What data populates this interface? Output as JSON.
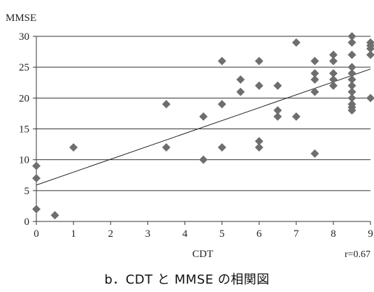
{
  "chart_data": {
    "type": "scatter",
    "title": "",
    "xlabel": "CDT",
    "ylabel": "MMSE",
    "xlim": [
      0,
      9
    ],
    "ylim": [
      0,
      30
    ],
    "x_ticks": [
      0,
      1,
      2,
      3,
      4,
      5,
      6,
      7,
      8,
      9
    ],
    "y_ticks": [
      0,
      5,
      10,
      15,
      20,
      25,
      30
    ],
    "grid": "horizontal",
    "marker": "diamond",
    "marker_color": "#6e6e6e",
    "line_color": "#222222",
    "points": [
      {
        "x": 0,
        "y": 9
      },
      {
        "x": 0,
        "y": 7
      },
      {
        "x": 0,
        "y": 2
      },
      {
        "x": 0.5,
        "y": 1
      },
      {
        "x": 1,
        "y": 12
      },
      {
        "x": 3.5,
        "y": 19
      },
      {
        "x": 3.5,
        "y": 12
      },
      {
        "x": 4.5,
        "y": 17
      },
      {
        "x": 4.5,
        "y": 10
      },
      {
        "x": 5,
        "y": 26
      },
      {
        "x": 5,
        "y": 19
      },
      {
        "x": 5,
        "y": 12
      },
      {
        "x": 5.5,
        "y": 23
      },
      {
        "x": 5.5,
        "y": 21
      },
      {
        "x": 6,
        "y": 26
      },
      {
        "x": 6,
        "y": 22
      },
      {
        "x": 6,
        "y": 13
      },
      {
        "x": 6,
        "y": 12
      },
      {
        "x": 6.5,
        "y": 22
      },
      {
        "x": 6.5,
        "y": 18
      },
      {
        "x": 6.5,
        "y": 17
      },
      {
        "x": 7,
        "y": 29
      },
      {
        "x": 7,
        "y": 17
      },
      {
        "x": 7.5,
        "y": 26
      },
      {
        "x": 7.5,
        "y": 24
      },
      {
        "x": 7.5,
        "y": 23
      },
      {
        "x": 7.5,
        "y": 21
      },
      {
        "x": 7.5,
        "y": 11
      },
      {
        "x": 8,
        "y": 27
      },
      {
        "x": 8,
        "y": 26
      },
      {
        "x": 8,
        "y": 24
      },
      {
        "x": 8,
        "y": 23
      },
      {
        "x": 8,
        "y": 22
      },
      {
        "x": 8.5,
        "y": 30
      },
      {
        "x": 8.5,
        "y": 29
      },
      {
        "x": 8.5,
        "y": 27
      },
      {
        "x": 8.5,
        "y": 25
      },
      {
        "x": 8.5,
        "y": 24
      },
      {
        "x": 8.5,
        "y": 23
      },
      {
        "x": 8.5,
        "y": 22
      },
      {
        "x": 8.5,
        "y": 21
      },
      {
        "x": 8.5,
        "y": 20
      },
      {
        "x": 8.5,
        "y": 19
      },
      {
        "x": 8.5,
        "y": 18.5
      },
      {
        "x": 8.5,
        "y": 18
      },
      {
        "x": 9,
        "y": 29
      },
      {
        "x": 9,
        "y": 28.5
      },
      {
        "x": 9,
        "y": 28
      },
      {
        "x": 9,
        "y": 27
      },
      {
        "x": 9,
        "y": 20
      }
    ],
    "trendline": {
      "x": [
        0,
        9
      ],
      "y": [
        5.9,
        24.7
      ]
    },
    "annotation": "r=0.67"
  },
  "caption": "b．CDT と MMSE の相関図"
}
